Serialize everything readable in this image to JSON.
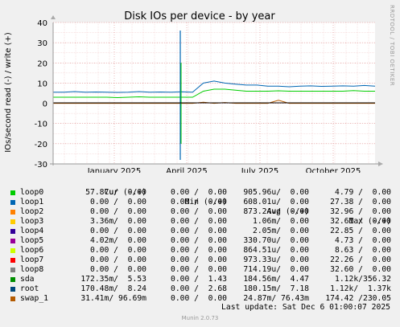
{
  "chart_data": {
    "type": "line",
    "title": "Disk IOs per device - by year",
    "ylabel": "IOs/second read (-) / write (+)",
    "ylim": [
      -30,
      40
    ],
    "yticks": [
      40,
      30,
      20,
      10,
      0,
      -10,
      -20,
      -30
    ],
    "x_tick_labels": [
      "January 2025",
      "April 2025",
      "July 2025",
      "October 2025"
    ],
    "grid": true,
    "vertical_label": "RRDTOOL / TOBI OETIKER",
    "series": [
      {
        "name": "sda",
        "color": "#00cc00",
        "values": [
          3,
          3,
          3,
          3,
          3,
          3,
          2.8,
          3,
          3.2,
          3,
          3,
          3,
          3,
          3,
          6,
          7,
          7,
          6.5,
          6,
          6,
          6,
          6.2,
          6,
          6,
          6,
          6,
          6,
          6,
          6.3,
          6,
          6
        ]
      },
      {
        "name": "root",
        "color": "#0066b3",
        "values": [
          5.5,
          5.5,
          5.8,
          5.5,
          5.6,
          5.5,
          5.4,
          5.5,
          5.8,
          5.5,
          5.6,
          5.5,
          5.7,
          5.5,
          10,
          11,
          10,
          9.5,
          9,
          9,
          8.5,
          8.5,
          8.2,
          8.5,
          8.6,
          8.4,
          8.5,
          8.6,
          8.5,
          8.8,
          8.5
        ]
      },
      {
        "name": "swap_1",
        "color": "#b35a00",
        "values": [
          0,
          0,
          0,
          0,
          0,
          0,
          0,
          0,
          0,
          0,
          0,
          0,
          0,
          0,
          0.5,
          0,
          0.4,
          0,
          0,
          0,
          0,
          1.5,
          0,
          0,
          0,
          0,
          0,
          0,
          0,
          0,
          0
        ]
      }
    ]
  },
  "legend": {
    "headers": {
      "cur": "Cur (-/+)",
      "min": "Min (-/+)",
      "avg": "Avg (-/+)",
      "max": "Max (-/+)"
    },
    "rows": [
      {
        "name": "loop0",
        "color": "#00cc00",
        "cur": "57.87u/  0.00",
        "min": "0.00 /  0.00",
        "avg": "905.96u/  0.00",
        "max": "4.79 /  0.00"
      },
      {
        "name": "loop1",
        "color": "#0066b3",
        "cur": "0.00 /  0.00",
        "min": "0.00 /  0.00",
        "avg": "608.01u/  0.00",
        "max": "27.38 /  0.00"
      },
      {
        "name": "loop2",
        "color": "#ff8000",
        "cur": "0.00 /  0.00",
        "min": "0.00 /  0.00",
        "avg": "873.24u/  0.00",
        "max": "32.96 /  0.00"
      },
      {
        "name": "loop3",
        "color": "#ffcc00",
        "cur": "3.36m/  0.00",
        "min": "0.00 /  0.00",
        "avg": "1.06m/  0.00",
        "max": "32.61 /  0.00"
      },
      {
        "name": "loop4",
        "color": "#330099",
        "cur": "0.00 /  0.00",
        "min": "0.00 /  0.00",
        "avg": "2.05m/  0.00",
        "max": "22.85 /  0.00"
      },
      {
        "name": "loop5",
        "color": "#990099",
        "cur": "4.02m/  0.00",
        "min": "0.00 /  0.00",
        "avg": "330.70u/  0.00",
        "max": "4.73 /  0.00"
      },
      {
        "name": "loop6",
        "color": "#ccff00",
        "cur": "0.00 /  0.00",
        "min": "0.00 /  0.00",
        "avg": "864.51u/  0.00",
        "max": "8.63 /  0.00"
      },
      {
        "name": "loop7",
        "color": "#ff0000",
        "cur": "0.00 /  0.00",
        "min": "0.00 /  0.00",
        "avg": "973.33u/  0.00",
        "max": "22.26 /  0.00"
      },
      {
        "name": "loop8",
        "color": "#808080",
        "cur": "0.00 /  0.00",
        "min": "0.00 /  0.00",
        "avg": "714.19u/  0.00",
        "max": "32.60 /  0.00"
      },
      {
        "name": "sda",
        "color": "#008f00",
        "cur": "172.35m/  5.53",
        "min": "0.00 /  1.43",
        "avg": "184.56m/  4.47",
        "max": "1.12k/356.32"
      },
      {
        "name": "root",
        "color": "#00487d",
        "cur": "170.48m/  8.24",
        "min": "0.00 /  2.68",
        "avg": "180.15m/  7.18",
        "max": "1.12k/  1.37k"
      },
      {
        "name": "swap_1",
        "color": "#b35a00",
        "cur": "31.41m/ 96.69m",
        "min": "0.00 /  0.00",
        "avg": "24.87m/ 76.43m",
        "max": "174.42 /230.05"
      }
    ]
  },
  "footer": {
    "last_update": "Last update: Sat Dec  6 01:00:07 2025",
    "munin": "Munin 2.0.73"
  }
}
